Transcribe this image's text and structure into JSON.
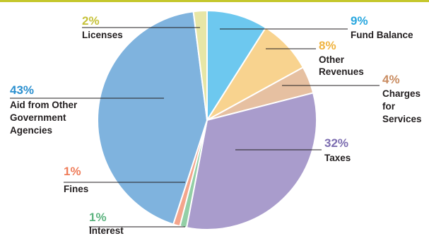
{
  "colors": {
    "accent_rule": "#c5c72c",
    "leader": "#231f20",
    "slice_border": "#ffffff"
  },
  "chart_data": {
    "type": "pie",
    "title": "",
    "start": "12 o'clock",
    "direction": "clockwise",
    "slices": [
      {
        "label": "Fund Balance",
        "value": 9,
        "display": "9%",
        "color": "#6dc8ef",
        "pct_color": "#29a7df"
      },
      {
        "label": "Other Revenues",
        "value": 8,
        "display": "8%",
        "color": "#f8d38f",
        "pct_color": "#f0b33f"
      },
      {
        "label": "Charges for Services",
        "value": 4,
        "display": "4%",
        "color": "#e6c0a1",
        "pct_color": "#c98c61"
      },
      {
        "label": "Taxes",
        "value": 32,
        "display": "32%",
        "color": "#a99ccc",
        "pct_color": "#7c6db0"
      },
      {
        "label": "Interest",
        "value": 1,
        "display": "1%",
        "color": "#93cfa6",
        "pct_color": "#5cb37f"
      },
      {
        "label": "Fines",
        "value": 1,
        "display": "1%",
        "color": "#f4a58c",
        "pct_color": "#ef7d5a"
      },
      {
        "label": "Aid from Other Government Agencies",
        "value": 43,
        "display": "43%",
        "color": "#7fb3de",
        "pct_color": "#2a8fcf"
      },
      {
        "label": "Licenses",
        "value": 2,
        "display": "2%",
        "color": "#e7e6a6",
        "pct_color": "#c6c23a"
      }
    ]
  }
}
